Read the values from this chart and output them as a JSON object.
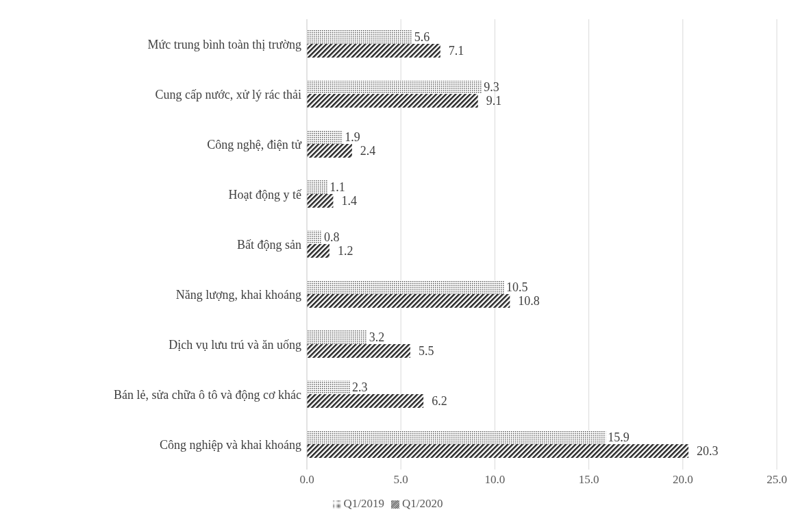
{
  "chart_data": {
    "type": "bar",
    "orientation": "horizontal",
    "categories": [
      "Mức trung bình toàn thị trường",
      "Cung cấp nước, xử lý rác thải",
      "Công nghệ, điện tử",
      "Hoạt động y tế",
      "Bất động sản",
      "Năng lượng, khai khoáng",
      "Dịch vụ lưu trú và ăn uống",
      "Bán lẻ, sửa chữa ô tô và động cơ khác",
      "Công nghiệp và khai khoáng"
    ],
    "series": [
      {
        "name": "Q1/2019",
        "color": "#595959",
        "values": [
          5.6,
          9.3,
          1.9,
          1.1,
          0.8,
          10.5,
          3.2,
          2.3,
          15.9
        ]
      },
      {
        "name": "Q1/2020",
        "color": "#262626",
        "values": [
          7.1,
          9.1,
          2.4,
          1.4,
          1.2,
          10.8,
          5.5,
          6.2,
          20.3
        ]
      }
    ],
    "xlim": [
      0,
      25
    ],
    "xticks": [
      {
        "value": 0,
        "label": "0.0"
      },
      {
        "value": 5,
        "label": "5.0"
      },
      {
        "value": 10,
        "label": "10.0"
      },
      {
        "value": 15,
        "label": "15.0"
      },
      {
        "value": 20,
        "label": "20.0"
      },
      {
        "value": 25,
        "label": "25.0"
      }
    ],
    "grid": "x",
    "legend": "bottom",
    "data_labels": true
  }
}
